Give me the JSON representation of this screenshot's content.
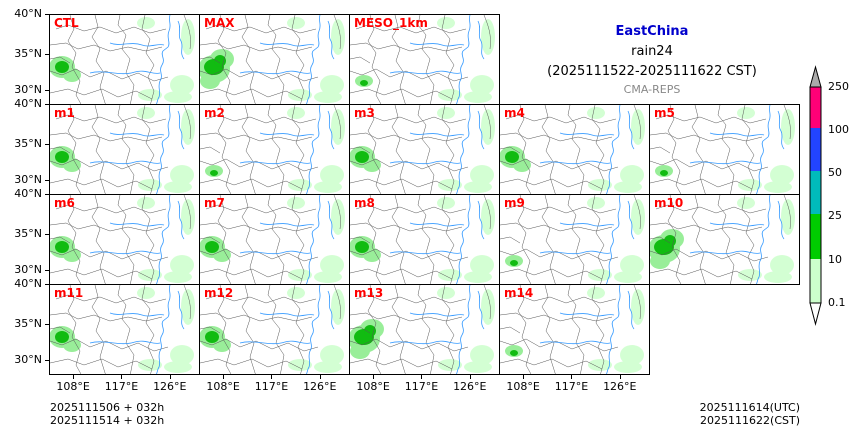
{
  "title": {
    "region": "EastChina",
    "variable": "rain24",
    "period": "(2025111522-2025111622 CST)",
    "source": "CMA-REPS"
  },
  "panels": [
    {
      "id": "CTL",
      "intensity": "medium"
    },
    {
      "id": "MAX",
      "intensity": "high"
    },
    {
      "id": "MESO_1km",
      "intensity": "low"
    },
    {
      "id": "m1",
      "intensity": "medium"
    },
    {
      "id": "m2",
      "intensity": "low"
    },
    {
      "id": "m3",
      "intensity": "medium"
    },
    {
      "id": "m4",
      "intensity": "medium"
    },
    {
      "id": "m5",
      "intensity": "low"
    },
    {
      "id": "m6",
      "intensity": "medium"
    },
    {
      "id": "m7",
      "intensity": "medium"
    },
    {
      "id": "m8",
      "intensity": "medium"
    },
    {
      "id": "m9",
      "intensity": "low"
    },
    {
      "id": "m10",
      "intensity": "high"
    },
    {
      "id": "m11",
      "intensity": "medium"
    },
    {
      "id": "m12",
      "intensity": "medium"
    },
    {
      "id": "m13",
      "intensity": "high"
    },
    {
      "id": "m14",
      "intensity": "low"
    }
  ],
  "axes": {
    "lat_labels_top": [
      "40°N",
      "35°N",
      "30°N"
    ],
    "lat_labels": [
      "40°N",
      "35°N",
      "30°N"
    ],
    "lon_labels": [
      "108°E",
      "117°E",
      "126°E"
    ]
  },
  "colorbar": {
    "levels": [
      "0.1",
      "10",
      "25",
      "50",
      "100",
      "250"
    ],
    "colors": [
      "#ccffcc",
      "#00cc00",
      "#00bbbb",
      "#2244ff",
      "#ff0077"
    ],
    "extend_color": "#aaaaaa"
  },
  "footer": {
    "init_utc_line": "2025111506  +  032h",
    "init_cst_line": "2025111514  +  032h",
    "valid_utc": "2025111614(UTC)",
    "valid_cst": "2025111622(CST)"
  }
}
